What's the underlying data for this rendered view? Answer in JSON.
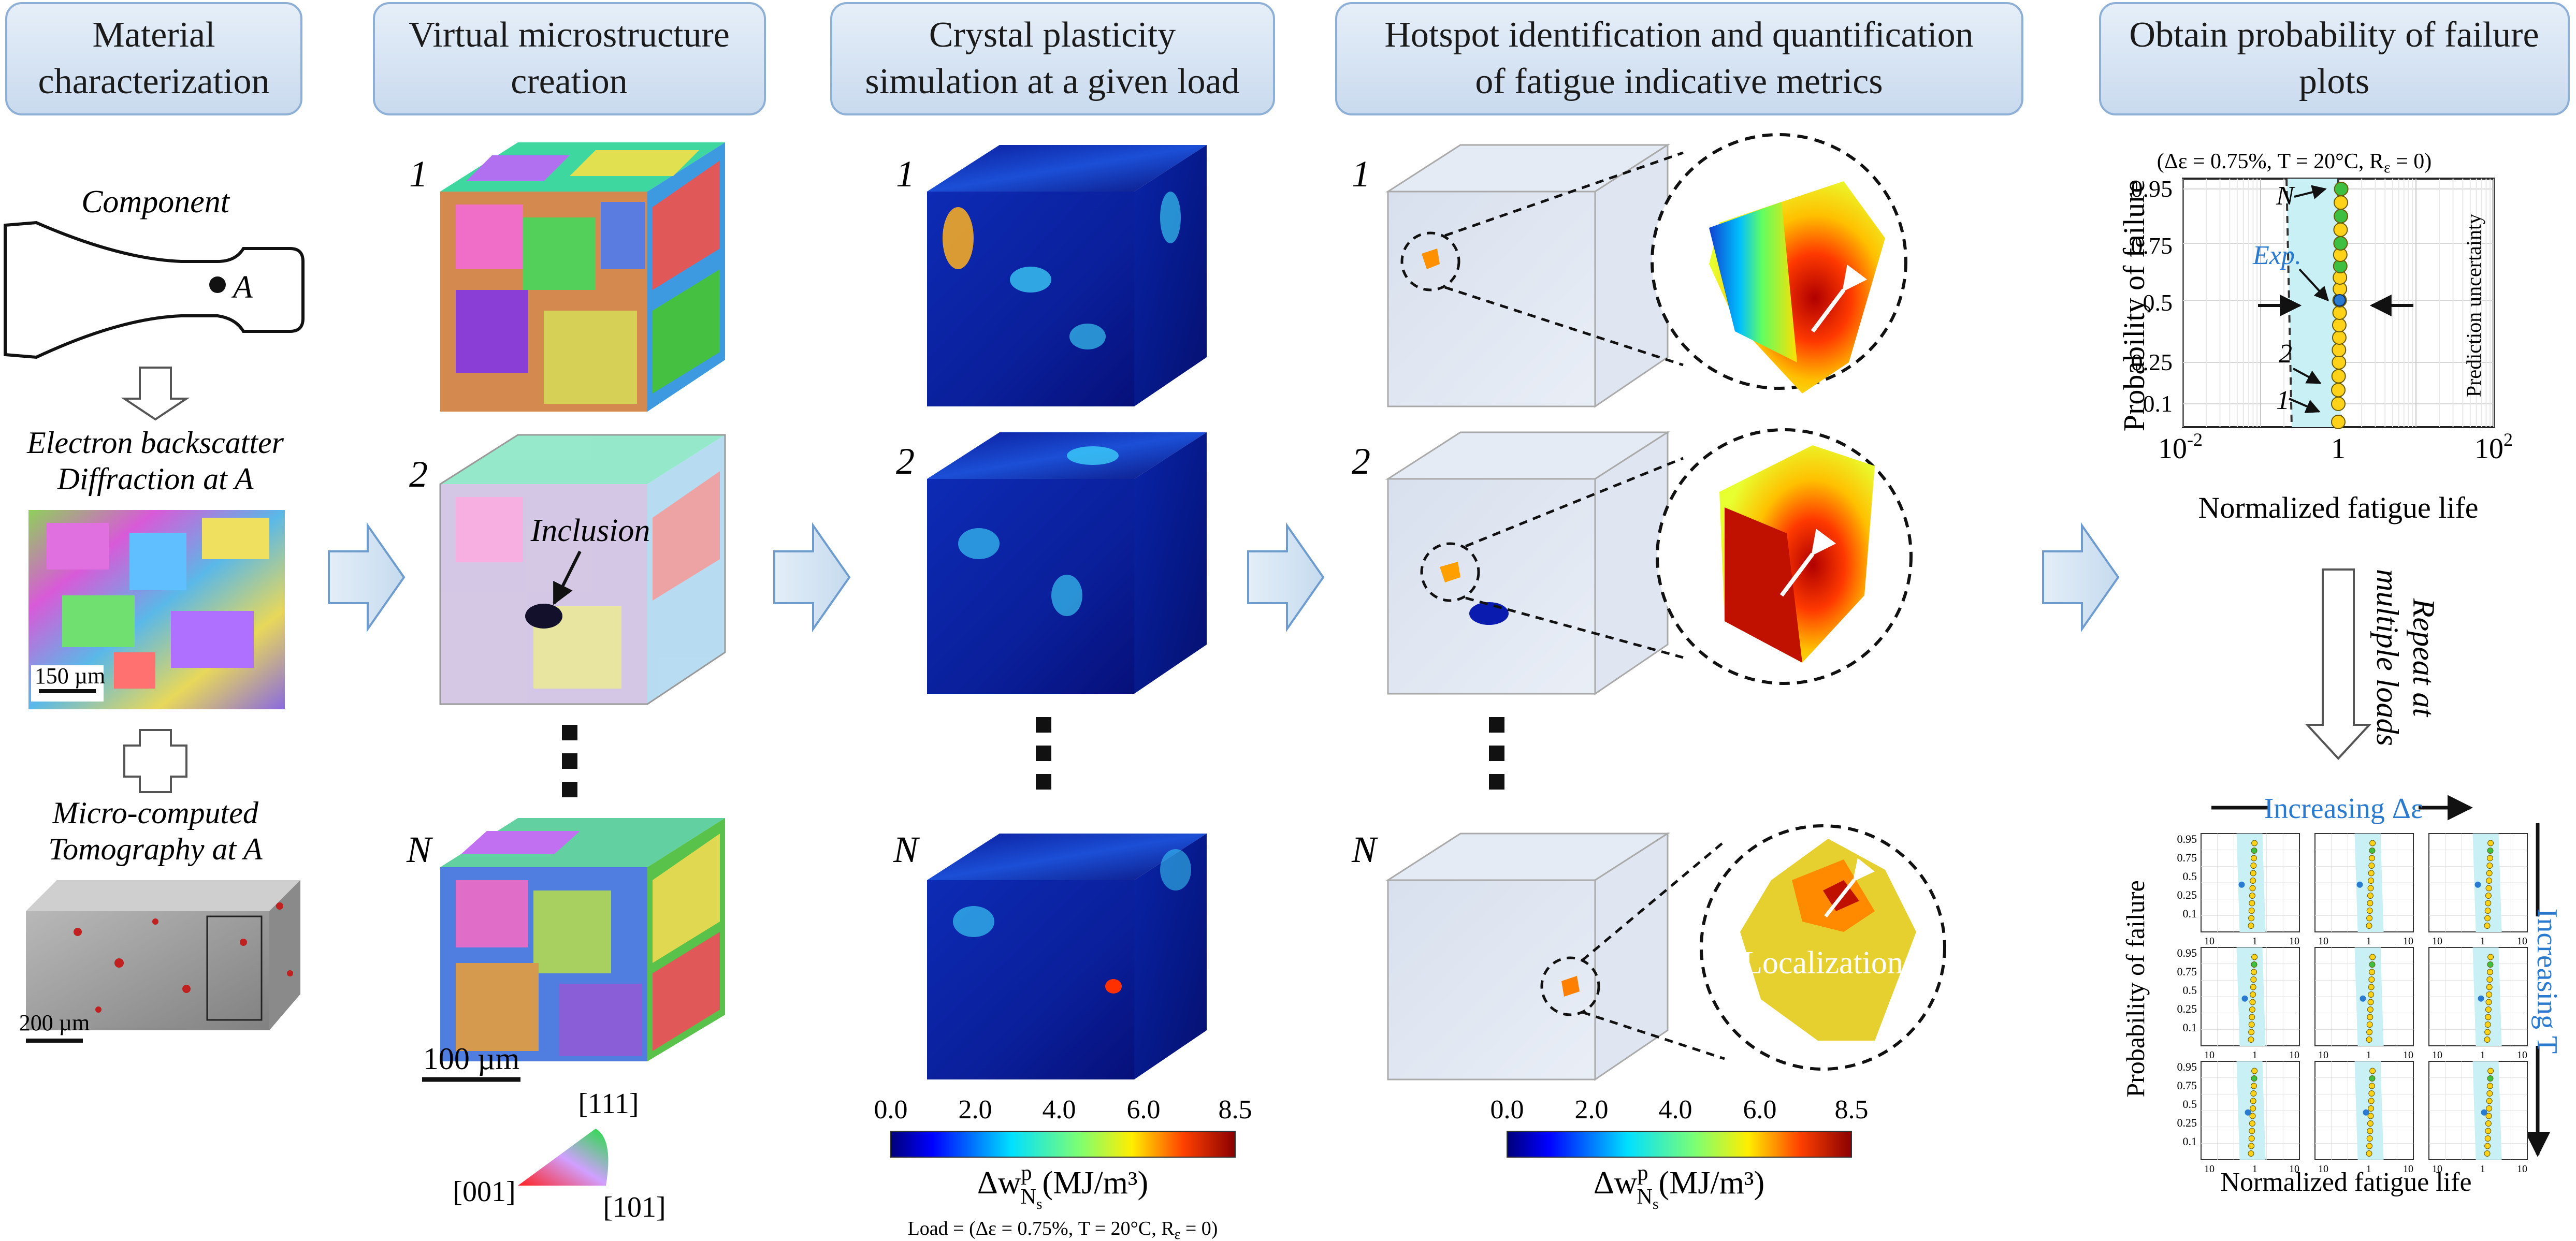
{
  "headers": [
    [
      "Material",
      "characterization"
    ],
    [
      "Virtual microstructure",
      "creation"
    ],
    [
      "Crystal plasticity",
      "simulation at a given load"
    ],
    [
      "Hotspot identification and quantification",
      "of fatigue indicative metrics"
    ],
    [
      "Obtain probability of failure",
      "plots"
    ]
  ],
  "characterization": {
    "component_label": "Component",
    "point_label": "A",
    "ebsd_label": [
      "Electron backscatter",
      "Diffraction at A"
    ],
    "ebsd_scale": "150 µm",
    "ct_label": [
      "Micro-computed",
      "Tomography at A"
    ],
    "ct_scale": "200 µm"
  },
  "microstructure": {
    "index_1": "1",
    "index_2": "2",
    "index_n": "N",
    "inclusion_label": "Inclusion",
    "scale": "100 µm",
    "ipf_labels": {
      "top": "[111]",
      "left": "[001]",
      "right": "[101]"
    }
  },
  "colorbar": {
    "ticks": [
      "0.0",
      "2.0",
      "4.0",
      "6.0",
      "8.5"
    ],
    "label_main": "Δw",
    "label_sup": "p",
    "label_sub": "N",
    "label_subsub": "s",
    "label_unit": "(MJ/m³)",
    "load_label": "Load = (Δε = 0.75%, T = 20°C, R",
    "load_sub": "ε",
    "load_end": " = 0)"
  },
  "hotspot": {
    "localization_label": "Localization"
  },
  "prob_plot": {
    "condition": "(Δε = 0.75%, T = 20°C, R",
    "condition_sub": "ε",
    "condition_end": " = 0)",
    "ylabel": "Probability of failure",
    "xlabel": "Normalized fatigue life",
    "yticks": [
      "0.95",
      "0.75",
      "0.5",
      "0.25",
      "0.1"
    ],
    "xticks": {
      "left": "10",
      "left_exp": "-2",
      "mid": "1",
      "right": "10",
      "right_exp": "2"
    },
    "label_n": "N",
    "label_exp": "Exp.",
    "label_2": "2",
    "label_1": "1",
    "uncertainty": "Prediction uncertainty",
    "repeat": [
      "Repeat at",
      "multiple loads"
    ]
  },
  "grid_plot": {
    "increasing_strain": "Increasing Δε",
    "increasing_temp": "Increasing T",
    "ylabel": "Probability of failure",
    "xlabel": "Normalized fatigue life",
    "yticks": [
      "0.95",
      "0.75",
      "0.5",
      "0.25",
      "0.1"
    ]
  },
  "chart_data": {
    "type": "scatter",
    "xlabel": "Normalized fatigue life",
    "ylabel": "Probability of failure",
    "xscale": "log",
    "xlim": [
      0.01,
      100
    ],
    "yticks": [
      0.1,
      0.25,
      0.5,
      0.75,
      0.95
    ],
    "series": [
      {
        "values": [
          [
            1.0,
            0.05
          ],
          [
            1.0,
            0.1
          ],
          [
            1.0,
            0.15
          ],
          [
            1.01,
            0.2
          ],
          [
            1.02,
            0.25
          ],
          [
            1.02,
            0.3
          ],
          [
            1.03,
            0.35
          ],
          [
            1.03,
            0.4
          ],
          [
            1.04,
            0.45
          ],
          [
            1.04,
            0.5
          ],
          [
            1.05,
            0.55
          ],
          [
            1.05,
            0.6
          ],
          [
            1.06,
            0.65
          ],
          [
            1.06,
            0.7
          ],
          [
            1.07,
            0.75
          ],
          [
            1.07,
            0.8
          ],
          [
            1.08,
            0.85
          ],
          [
            1.08,
            0.9
          ],
          [
            1.09,
            0.95
          ]
        ]
      },
      {
        "values": [
          [
            1.04,
            0.5
          ]
        ]
      }
    ]
  }
}
